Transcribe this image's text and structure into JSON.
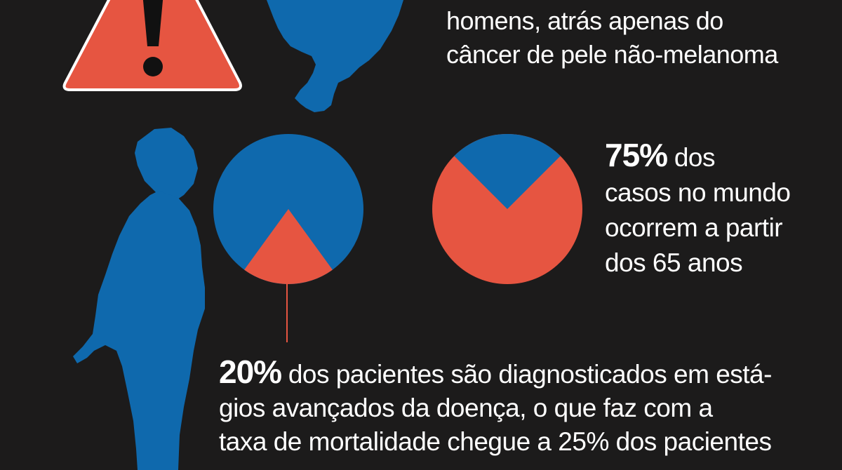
{
  "colors": {
    "background": "#1c1b1b",
    "blue": "#0f69ad",
    "red": "#e65541",
    "white": "#ffffff"
  },
  "icons": {
    "warning": "warning-triangle-icon",
    "map": "brazil-map-silhouette",
    "person": "man-silhouette-looking-up"
  },
  "top_text": {
    "line1": "homens, atrás apenas do",
    "line2": "câncer de pele não-melanoma"
  },
  "stat_75": {
    "value": "75%",
    "line1_rest": " dos",
    "line2": "casos no mundo",
    "line3": "ocorrem a partir",
    "line4": "dos 65 anos"
  },
  "stat_20": {
    "value": "20%",
    "line1_rest": " dos pacientes são diagnosticados em está-",
    "line2": "gios avançados da doença, o que faz com a",
    "line3": "taxa de mortalidade chegue a 25% dos pacientes"
  },
  "chart_data": [
    {
      "type": "pie",
      "values": [
        20,
        80
      ],
      "highlight_percent": 20,
      "slice_colors": [
        "#e65541",
        "#0f69ad"
      ]
    },
    {
      "type": "pie",
      "values": [
        75,
        25
      ],
      "highlight_percent": 75,
      "slice_colors": [
        "#e65541",
        "#0f69ad"
      ]
    }
  ]
}
